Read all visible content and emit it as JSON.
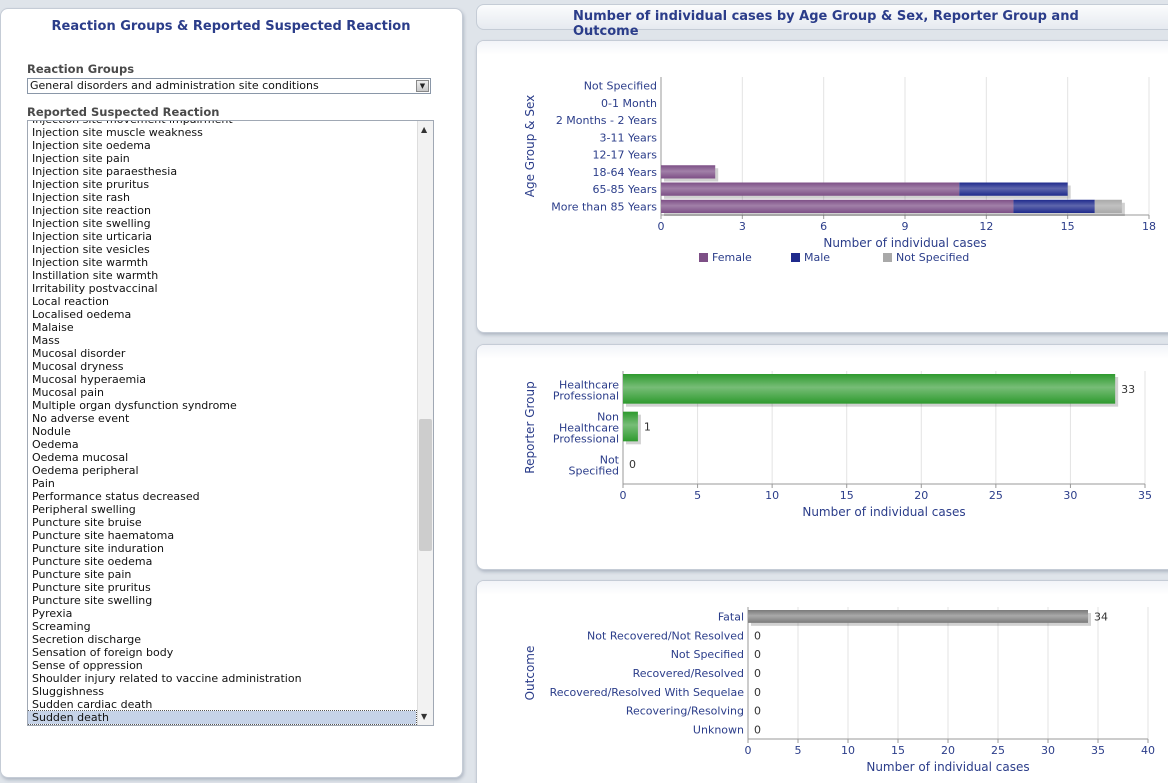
{
  "left_panel": {
    "title": "Reaction Groups & Reported Suspected Reaction",
    "groups_label": "Reaction Groups",
    "groups_selected": "General disorders and administration site conditions",
    "reaction_label": "Reported Suspected Reaction",
    "reactions": [
      "Injection site movement impairment",
      "Injection site muscle weakness",
      "Injection site oedema",
      "Injection site pain",
      "Injection site paraesthesia",
      "Injection site pruritus",
      "Injection site rash",
      "Injection site reaction",
      "Injection site swelling",
      "Injection site urticaria",
      "Injection site vesicles",
      "Injection site warmth",
      "Instillation site warmth",
      "Irritability postvaccinal",
      "Local reaction",
      "Localised oedema",
      "Malaise",
      "Mass",
      "Mucosal disorder",
      "Mucosal dryness",
      "Mucosal hyperaemia",
      "Mucosal pain",
      "Multiple organ dysfunction syndrome",
      "No adverse event",
      "Nodule",
      "Oedema",
      "Oedema mucosal",
      "Oedema peripheral",
      "Pain",
      "Performance status decreased",
      "Peripheral swelling",
      "Puncture site bruise",
      "Puncture site haematoma",
      "Puncture site induration",
      "Puncture site oedema",
      "Puncture site pain",
      "Puncture site pruritus",
      "Puncture site swelling",
      "Pyrexia",
      "Screaming",
      "Secretion discharge",
      "Sensation of foreign body",
      "Sense of oppression",
      "Shoulder injury related to vaccine administration",
      "Sluggishness",
      "Sudden cardiac death",
      "Sudden death"
    ],
    "selected_reaction": "Sudden death",
    "scroll_up_icon": "triangle-up",
    "scroll_down_icon": "triangle-down"
  },
  "right_title": "Number of individual cases by Age Group & Sex, Reporter Group and Outcome",
  "chart_data": [
    {
      "type": "bar",
      "orientation": "horizontal",
      "stacked": true,
      "ylabel": "Age Group & Sex",
      "xlabel": "Number of individual cases",
      "categories": [
        "Not Specified",
        "0-1 Month",
        "2 Months - 2 Years",
        "3-11 Years",
        "12-17 Years",
        "18-64 Years",
        "65-85 Years",
        "More than 85 Years"
      ],
      "series": [
        {
          "name": "Female",
          "color": "#7d4f86",
          "values": [
            0,
            0,
            0,
            0,
            0,
            2,
            11,
            13
          ]
        },
        {
          "name": "Male",
          "color": "#1f2a8c",
          "values": [
            0,
            0,
            0,
            0,
            0,
            0,
            4,
            3
          ]
        },
        {
          "name": "Not Specified",
          "color": "#a9a9a9",
          "values": [
            0,
            0,
            0,
            0,
            0,
            0,
            0,
            1
          ]
        }
      ],
      "xlim": [
        0,
        18
      ],
      "xticks": [
        "0",
        "3",
        "6",
        "9",
        "12",
        "15",
        "18"
      ],
      "legend_position": "bottom",
      "grid": true
    },
    {
      "type": "bar",
      "orientation": "horizontal",
      "ylabel": "Reporter Group",
      "xlabel": "Number of individual cases",
      "categories": [
        [
          "Healthcare",
          "Professional"
        ],
        [
          "Non",
          "Healthcare",
          "Professional"
        ],
        [
          "Not",
          "Specified"
        ]
      ],
      "values": [
        33,
        1,
        0
      ],
      "value_labels": [
        "33",
        "1",
        "0"
      ],
      "color": "#2e9a2e",
      "xlim": [
        0,
        35
      ],
      "xticks": [
        "0",
        "5",
        "10",
        "15",
        "20",
        "25",
        "30",
        "35"
      ],
      "grid": true
    },
    {
      "type": "bar",
      "orientation": "horizontal",
      "ylabel": "Outcome",
      "xlabel": "Number of individual cases",
      "categories": [
        "Fatal",
        "Not Recovered/Not Resolved",
        "Not Specified",
        "Recovered/Resolved",
        "Recovered/Resolved With Sequelae",
        "Recovering/Resolving",
        "Unknown"
      ],
      "values": [
        34,
        0,
        0,
        0,
        0,
        0,
        0
      ],
      "value_labels": [
        "34",
        "0",
        "0",
        "0",
        "0",
        "0",
        "0"
      ],
      "color": "#7a7a7a",
      "xlim": [
        0,
        40
      ],
      "xticks": [
        "0",
        "5",
        "10",
        "15",
        "20",
        "25",
        "30",
        "35",
        "40"
      ],
      "grid": true
    }
  ]
}
